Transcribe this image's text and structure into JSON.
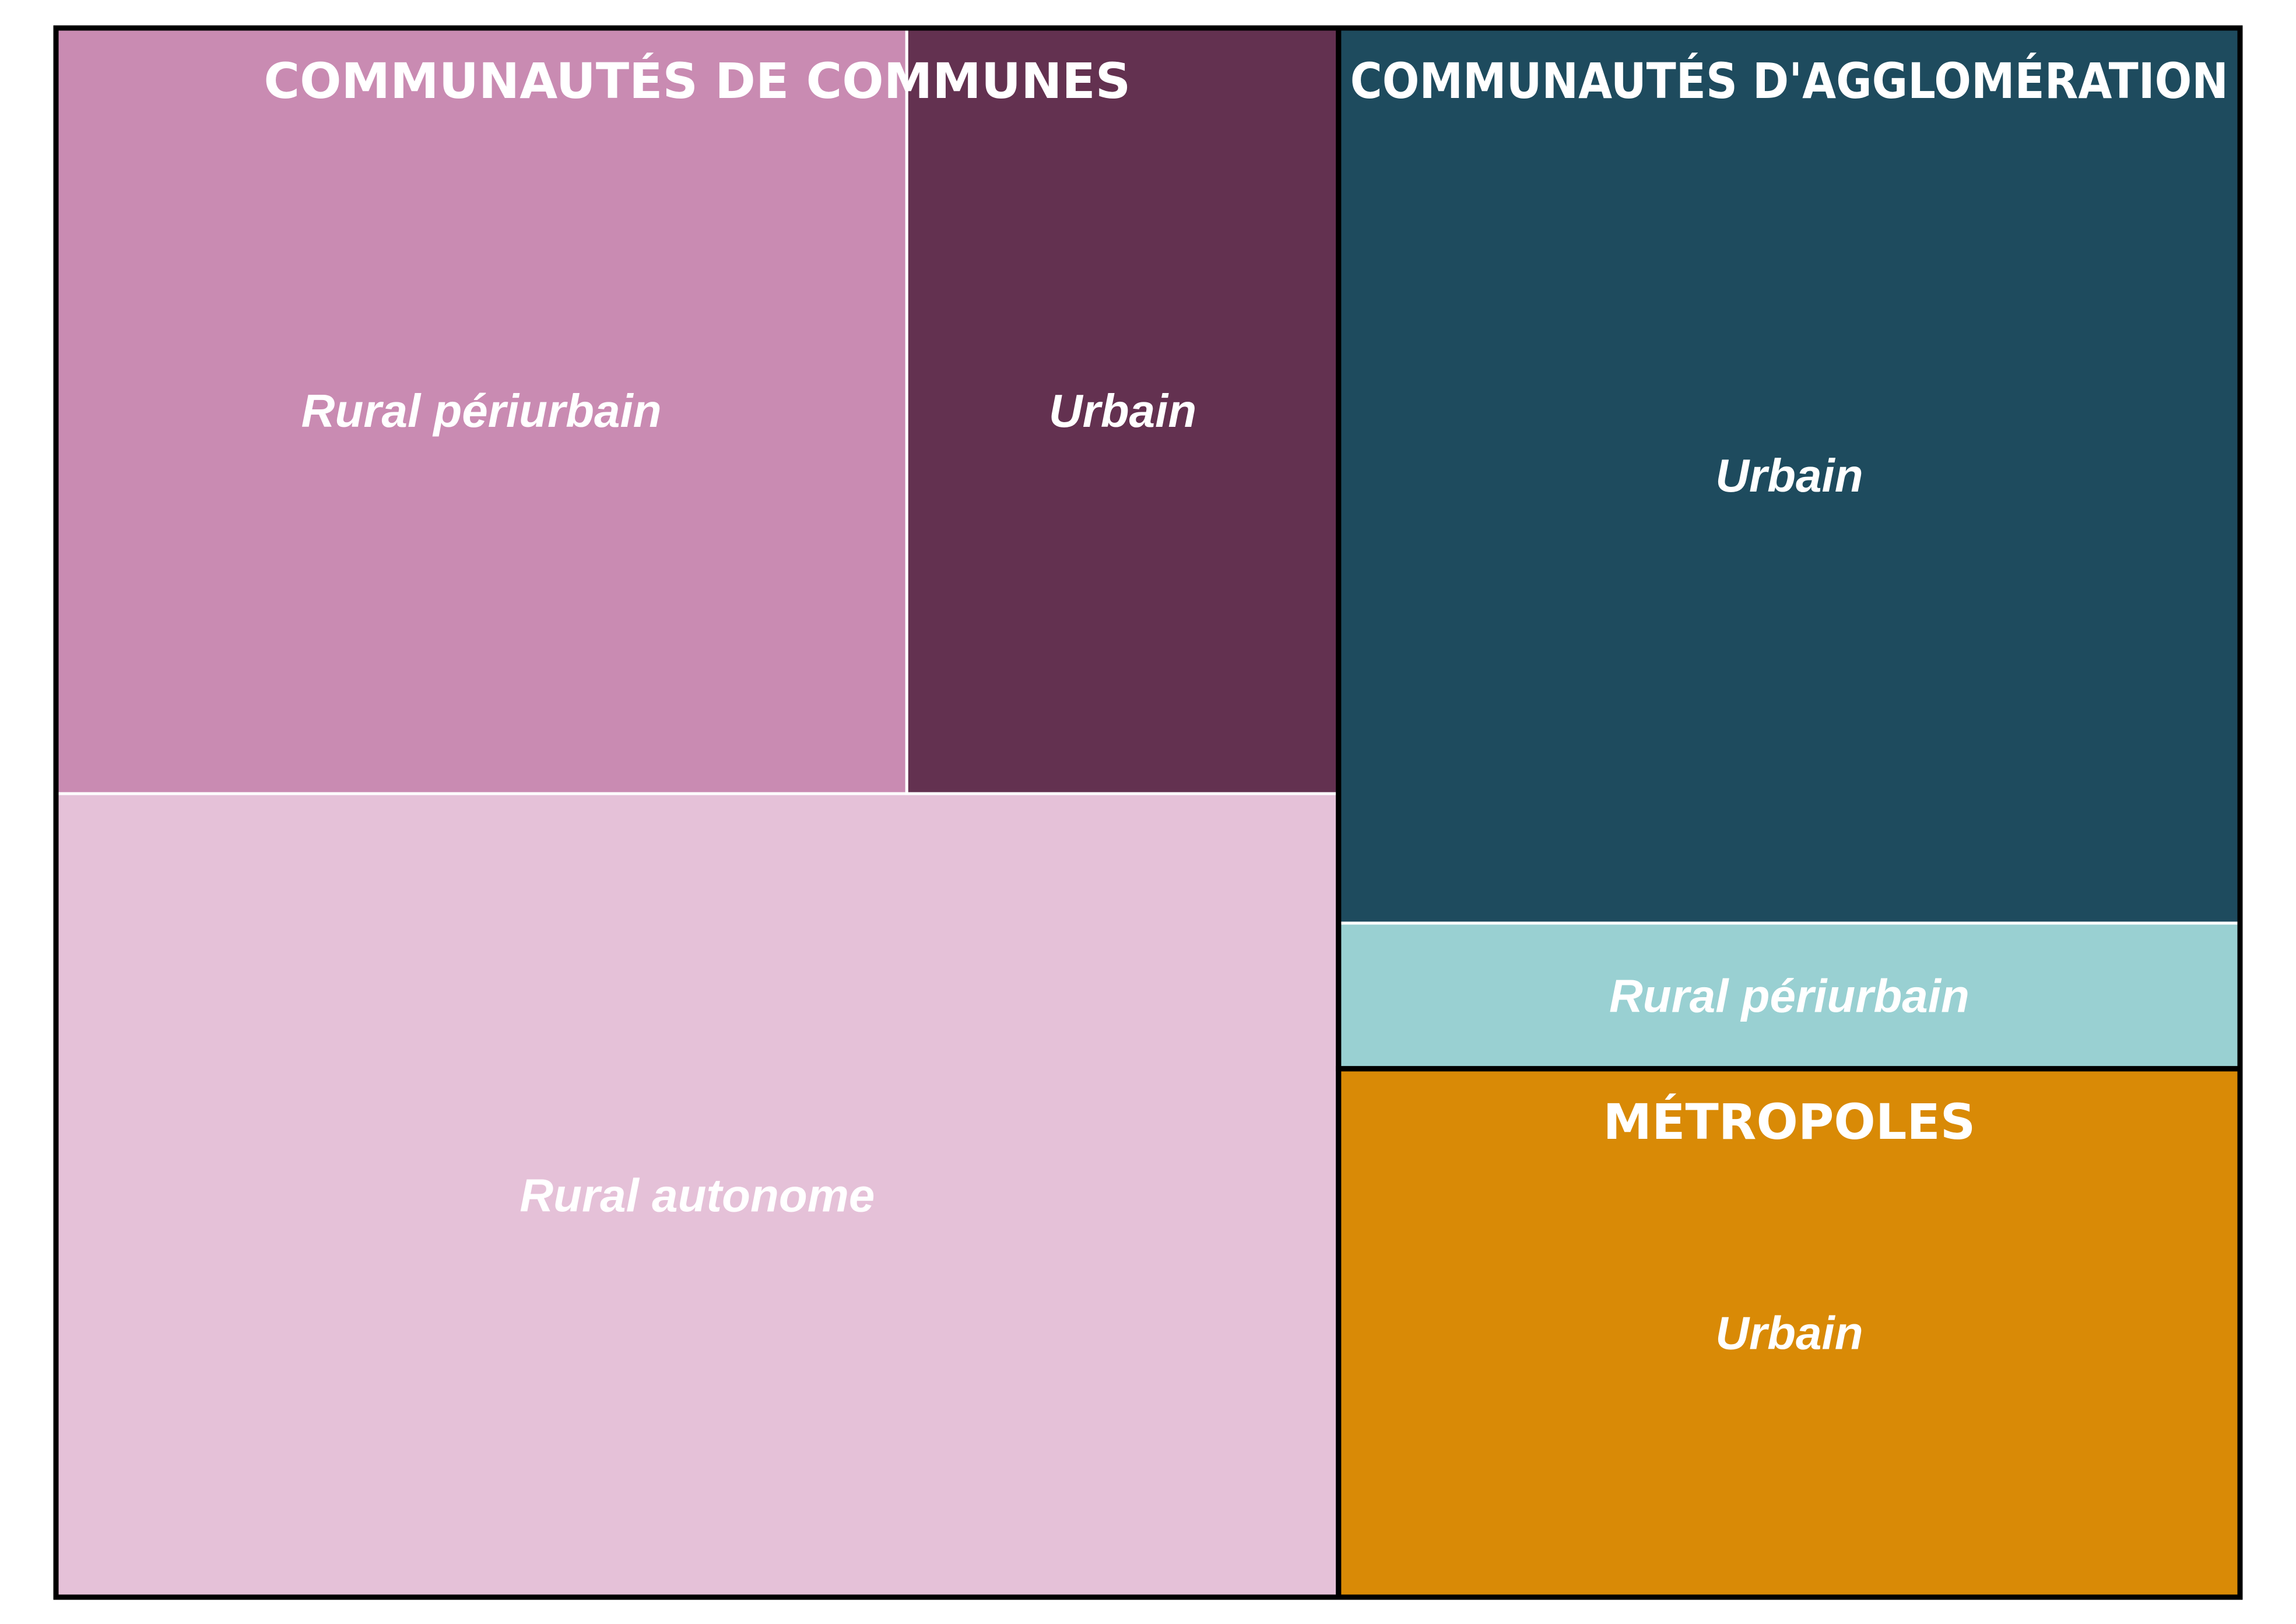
{
  "chart_data": {
    "type": "treemap",
    "title": "",
    "groups": [
      {
        "name": "COMMUNAUTÉS DE COMMUNES",
        "children": [
          {
            "name": "Rural périurbain",
            "value": 1340,
            "color": "#c98bb2"
          },
          {
            "name": "Urbain",
            "value": 680,
            "color": "#633150"
          },
          {
            "name": "Rural autonome",
            "value": 2120,
            "color": "#e5c1d8"
          }
        ]
      },
      {
        "name": "COMMUNAUTÉS D'AGGLOMÉRATION",
        "children": [
          {
            "name": "Urbain",
            "value": 1660,
            "color": "#1e4b5e"
          },
          {
            "name": "Rural périurbain",
            "value": 270,
            "color": "#99d0d2"
          }
        ]
      },
      {
        "name": "MÉTROPOLES",
        "children": [
          {
            "name": "Urbain",
            "value": 980,
            "color": "#d98a06"
          }
        ]
      }
    ]
  }
}
